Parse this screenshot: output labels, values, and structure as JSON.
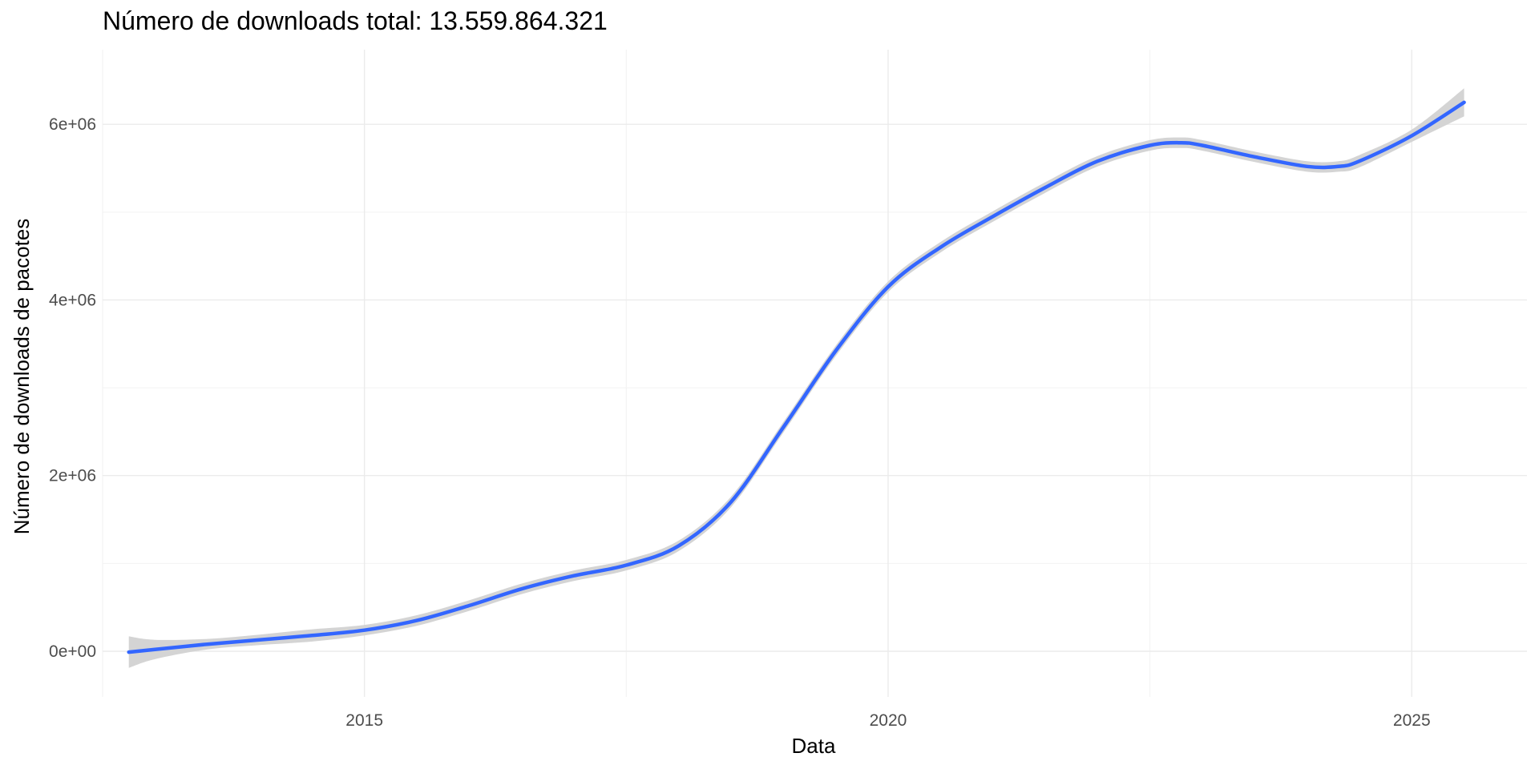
{
  "chart_data": {
    "type": "line",
    "title": "Número de downloads total: 13.559.864.321",
    "xlabel": "Data",
    "ylabel": "Número de downloads de pacotes",
    "xlim": [
      2012.5,
      2026.1
    ],
    "ylim": [
      -520000,
      6850000
    ],
    "x_ticks": [
      2015,
      2020,
      2025
    ],
    "x_tick_labels": [
      "2015",
      "2020",
      "2025"
    ],
    "x_minor_ticks": [
      2012.5,
      2017.5,
      2022.5
    ],
    "y_ticks": [
      0,
      2000000,
      4000000,
      6000000
    ],
    "y_tick_labels": [
      "0e+00",
      "2e+06",
      "4e+06",
      "6e+06"
    ],
    "y_minor_ticks": [
      1000000,
      3000000,
      5000000
    ],
    "grid": true,
    "series": [
      {
        "color": "#3366FF",
        "band_color": "#d4d4d4",
        "x": [
          2012.75,
          2013.0,
          2013.5,
          2014.0,
          2014.5,
          2015.0,
          2015.5,
          2016.0,
          2016.5,
          2017.0,
          2017.5,
          2018.0,
          2018.5,
          2019.0,
          2019.5,
          2020.0,
          2020.5,
          2021.0,
          2021.5,
          2022.0,
          2022.5,
          2022.8,
          2023.0,
          2023.5,
          2024.0,
          2024.3,
          2024.5,
          2025.0,
          2025.5
        ],
        "values": [
          -10000,
          20000,
          80000,
          130000,
          180000,
          240000,
          350000,
          520000,
          710000,
          860000,
          980000,
          1200000,
          1700000,
          2550000,
          3420000,
          4150000,
          4600000,
          4950000,
          5280000,
          5580000,
          5760000,
          5790000,
          5760000,
          5630000,
          5520000,
          5520000,
          5580000,
          5870000,
          6250000
        ],
        "lower": [
          -190000,
          -90000,
          20000,
          70000,
          110000,
          180000,
          290000,
          460000,
          650000,
          800000,
          920000,
          1140000,
          1640000,
          2490000,
          3360000,
          4090000,
          4540000,
          4890000,
          5220000,
          5520000,
          5700000,
          5730000,
          5700000,
          5570000,
          5460000,
          5460000,
          5510000,
          5800000,
          6090000
        ],
        "upper": [
          170000,
          130000,
          140000,
          190000,
          250000,
          300000,
          410000,
          580000,
          770000,
          920000,
          1040000,
          1260000,
          1760000,
          2610000,
          3480000,
          4210000,
          4660000,
          5010000,
          5340000,
          5640000,
          5820000,
          5850000,
          5820000,
          5690000,
          5580000,
          5580000,
          5650000,
          5940000,
          6410000
        ]
      }
    ]
  }
}
